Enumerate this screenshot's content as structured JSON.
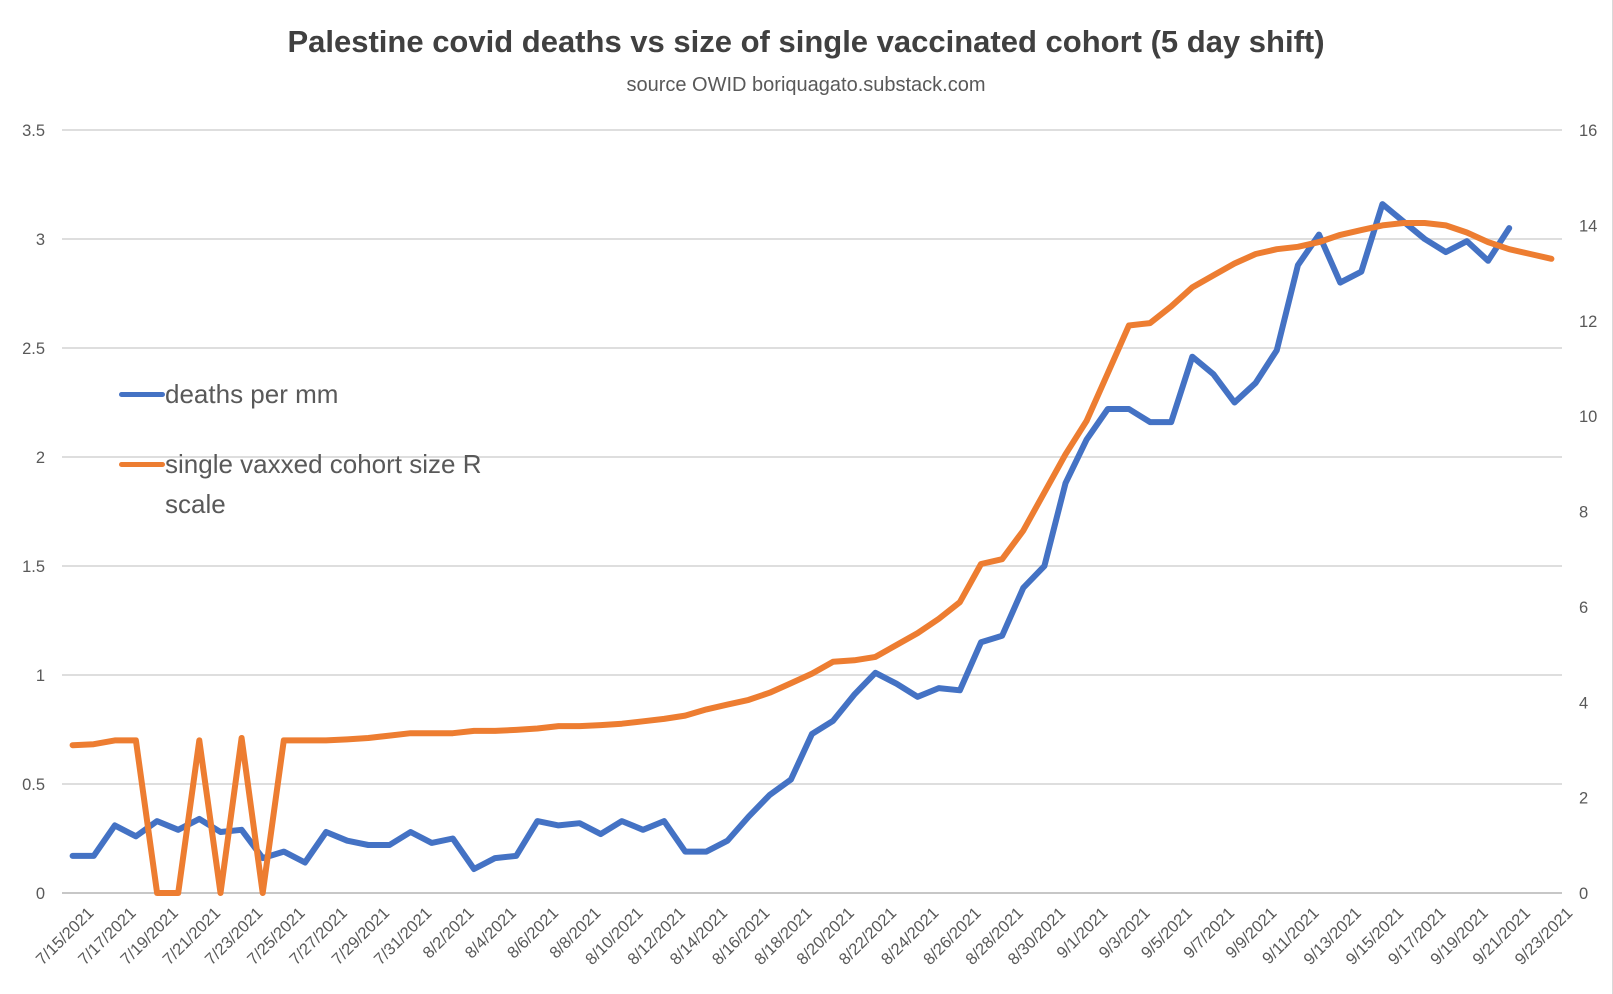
{
  "chart": {
    "colors": {
      "deaths_line": "#4472C4",
      "cohort_line": "#ED7D31",
      "gridline": "#D9D9D9",
      "axis_line": "#BFBFBF",
      "axis_text": "#595959",
      "title_text": "#404040"
    }
  },
  "legend": {
    "items": [
      {
        "label": "deaths per mm"
      },
      {
        "label": "single vaxxed cohort size R scale"
      }
    ]
  },
  "chart_data": {
    "type": "line",
    "title": "Palestine covid deaths vs size of single vaccinated cohort (5 day shift)",
    "subtitle": "source OWID boriquagato.substack.com",
    "grid": true,
    "legend_position": "inside-left",
    "x_label_interval": 2,
    "left_axis": {
      "min": 0,
      "max": 3.5,
      "step": 0.5,
      "ticks": [
        "0",
        "0.5",
        "1",
        "1.5",
        "2",
        "2.5",
        "3",
        "3.5"
      ]
    },
    "right_axis": {
      "min": 0,
      "max": 16,
      "step": 2,
      "ticks": [
        "0",
        "2",
        "4",
        "6",
        "8",
        "10",
        "12",
        "14",
        "16"
      ]
    },
    "x": [
      "7/15/2021",
      "7/16/2021",
      "7/17/2021",
      "7/18/2021",
      "7/19/2021",
      "7/20/2021",
      "7/21/2021",
      "7/22/2021",
      "7/23/2021",
      "7/24/2021",
      "7/25/2021",
      "7/26/2021",
      "7/27/2021",
      "7/28/2021",
      "7/29/2021",
      "7/30/2021",
      "7/31/2021",
      "8/1/2021",
      "8/2/2021",
      "8/3/2021",
      "8/4/2021",
      "8/5/2021",
      "8/6/2021",
      "8/7/2021",
      "8/8/2021",
      "8/9/2021",
      "8/10/2021",
      "8/11/2021",
      "8/12/2021",
      "8/13/2021",
      "8/14/2021",
      "8/15/2021",
      "8/16/2021",
      "8/17/2021",
      "8/18/2021",
      "8/19/2021",
      "8/20/2021",
      "8/21/2021",
      "8/22/2021",
      "8/23/2021",
      "8/24/2021",
      "8/25/2021",
      "8/26/2021",
      "8/27/2021",
      "8/28/2021",
      "8/29/2021",
      "8/30/2021",
      "8/31/2021",
      "9/1/2021",
      "9/2/2021",
      "9/3/2021",
      "9/4/2021",
      "9/5/2021",
      "9/6/2021",
      "9/7/2021",
      "9/8/2021",
      "9/9/2021",
      "9/10/2021",
      "9/11/2021",
      "9/12/2021",
      "9/13/2021",
      "9/14/2021",
      "9/15/2021",
      "9/16/2021",
      "9/17/2021",
      "9/18/2021",
      "9/19/2021",
      "9/20/2021",
      "9/21/2021",
      "9/22/2021",
      "9/23/2021"
    ],
    "series": [
      {
        "name": "deaths per mm",
        "axis": "left",
        "color": "#4472C4",
        "values": [
          0.17,
          0.17,
          0.31,
          0.26,
          0.33,
          0.29,
          0.34,
          0.28,
          0.29,
          0.16,
          0.19,
          0.14,
          0.28,
          0.24,
          0.22,
          0.22,
          0.28,
          0.23,
          0.25,
          0.11,
          0.16,
          0.17,
          0.33,
          0.31,
          0.32,
          0.27,
          0.33,
          0.29,
          0.33,
          0.19,
          0.19,
          0.24,
          0.35,
          0.45,
          0.52,
          0.73,
          0.79,
          0.91,
          1.01,
          0.96,
          0.9,
          0.94,
          0.93,
          1.15,
          1.18,
          1.4,
          1.5,
          1.88,
          2.08,
          2.22,
          2.22,
          2.16,
          2.16,
          2.46,
          2.38,
          2.25,
          2.34,
          2.49,
          2.88,
          3.02,
          2.8,
          2.85,
          3.16,
          3.08,
          3.0,
          2.94,
          2.99,
          2.9,
          3.05,
          null,
          null
        ]
      },
      {
        "name": "single vaxxed cohort size R scale",
        "axis": "right",
        "color": "#ED7D31",
        "values": [
          3.1,
          3.12,
          3.2,
          3.2,
          0,
          0,
          3.2,
          0,
          3.25,
          0,
          3.2,
          3.2,
          3.2,
          3.22,
          3.25,
          3.3,
          3.35,
          3.35,
          3.35,
          3.4,
          3.4,
          3.42,
          3.45,
          3.5,
          3.5,
          3.52,
          3.55,
          3.6,
          3.65,
          3.72,
          3.85,
          3.95,
          4.05,
          4.2,
          4.4,
          4.6,
          4.85,
          4.88,
          4.95,
          5.2,
          5.45,
          5.75,
          6.1,
          6.9,
          7.0,
          7.6,
          8.4,
          9.2,
          9.9,
          10.9,
          11.9,
          11.95,
          12.3,
          12.7,
          12.95,
          13.2,
          13.4,
          13.5,
          13.55,
          13.65,
          13.8,
          13.9,
          14.0,
          14.05,
          14.05,
          14.0,
          13.85,
          13.65,
          13.5,
          13.4,
          13.3
        ]
      }
    ]
  }
}
